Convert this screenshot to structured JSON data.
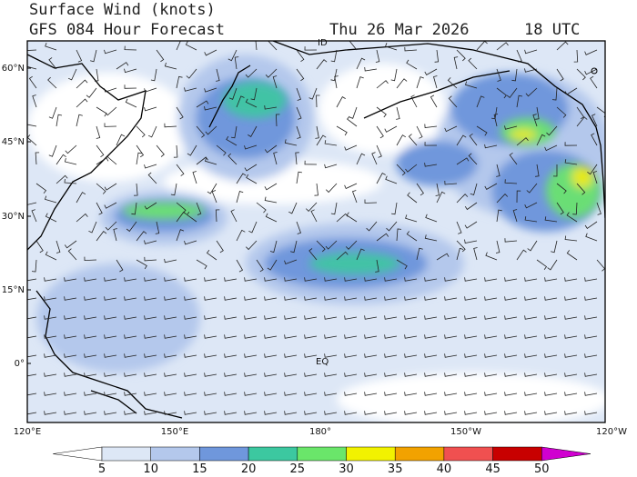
{
  "header": {
    "title": "Surface Wind (knots)",
    "subtitle": "GFS 084 Hour Forecast",
    "date": "Thu 26 Mar 2026",
    "time": "18 UTC"
  },
  "map": {
    "lat_labels": [
      "60°N",
      "45°N",
      "30°N",
      "15°N",
      "0°"
    ],
    "lon_labels": [
      "120°E",
      "150°E",
      "180°",
      "150°W",
      "120°W"
    ],
    "annotations": [
      "ID",
      "EQ"
    ]
  },
  "colorbar": {
    "levels": [
      5,
      10,
      15,
      20,
      25,
      30,
      35,
      40,
      45,
      50
    ],
    "colors": [
      "#ffffff",
      "#dde7f6",
      "#b4c8ec",
      "#6f97dc",
      "#3cc8a0",
      "#6ae66a",
      "#f2f200",
      "#f2a200",
      "#f05050",
      "#c80000",
      "#d000d0"
    ]
  }
}
